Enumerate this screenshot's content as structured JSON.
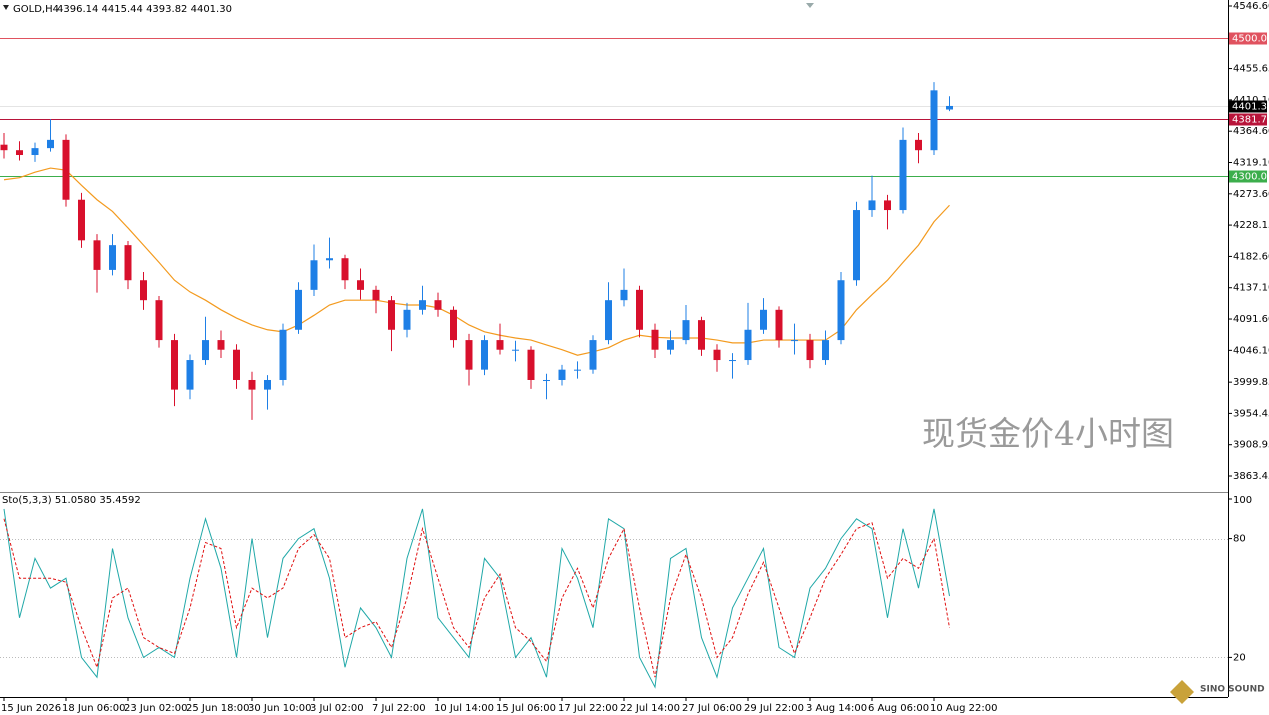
{
  "header": {
    "symbol": "GOLD,H4",
    "ohlc_text": "4396.14 4415.44 4393.82 4401.30"
  },
  "chart_data": [
    {
      "type": "candlestick",
      "categories": [
        "15 Jun 2026",
        null,
        null,
        null,
        "18 Jun 06:00",
        null,
        null,
        null,
        "23 Jun 02:00",
        null,
        null,
        null,
        "25 Jun 18:00",
        null,
        null,
        null,
        "30 Jun 10:00",
        null,
        null,
        null,
        "3 Jul 02:00",
        null,
        null,
        null,
        "7 Jul 22:00",
        null,
        null,
        null,
        "10 Jul 14:00",
        null,
        null,
        null,
        "15 Jul 06:00",
        null,
        null,
        null,
        "17 Jul 22:00",
        null,
        null,
        null,
        "22 Jul 14:00",
        null,
        null,
        null,
        "27 Jul 06:00",
        null,
        null,
        null,
        "29 Jul 22:00",
        null,
        null,
        null,
        "3 Aug 14:00",
        null,
        null,
        null,
        "6 Aug 06:00",
        null,
        null,
        null,
        "10 Aug 22:00",
        null
      ],
      "ohlc": [
        [
          4345,
          4362,
          4325,
          4337
        ],
        [
          4337,
          4350,
          4322,
          4330
        ],
        [
          4330,
          4348,
          4320,
          4340
        ],
        [
          4340,
          4382,
          4335,
          4352
        ],
        [
          4352,
          4360,
          4255,
          4265
        ],
        [
          4265,
          4275,
          4195,
          4206
        ],
        [
          4206,
          4215,
          4130,
          4163
        ],
        [
          4163,
          4215,
          4155,
          4199
        ],
        [
          4199,
          4205,
          4135,
          4148
        ],
        [
          4148,
          4160,
          4105,
          4119
        ],
        [
          4119,
          4125,
          4050,
          4061
        ],
        [
          4061,
          4070,
          3965,
          3989
        ],
        [
          3989,
          4040,
          3975,
          4032
        ],
        [
          4032,
          4095,
          4025,
          4061
        ],
        [
          4061,
          4075,
          4035,
          4047
        ],
        [
          4047,
          4055,
          3990,
          4003
        ],
        [
          4003,
          4015,
          3945,
          3989
        ],
        [
          3989,
          4010,
          3960,
          4003
        ],
        [
          4003,
          4085,
          3995,
          4076
        ],
        [
          4076,
          4145,
          4070,
          4134
        ],
        [
          4134,
          4200,
          4125,
          4177
        ],
        [
          4177,
          4210,
          4165,
          4180
        ],
        [
          4180,
          4185,
          4135,
          4148
        ],
        [
          4148,
          4165,
          4120,
          4134
        ],
        [
          4134,
          4140,
          4100,
          4119
        ],
        [
          4119,
          4125,
          4045,
          4076
        ],
        [
          4076,
          4115,
          4065,
          4105
        ],
        [
          4105,
          4140,
          4098,
          4119
        ],
        [
          4119,
          4130,
          4095,
          4105
        ],
        [
          4105,
          4110,
          4050,
          4061
        ],
        [
          4061,
          4070,
          3995,
          4018
        ],
        [
          4018,
          4068,
          4010,
          4061
        ],
        [
          4061,
          4085,
          4040,
          4047
        ],
        [
          4047,
          4060,
          4030,
          4047
        ],
        [
          4047,
          4052,
          3990,
          4003
        ],
        [
          4003,
          4012,
          3975,
          4003
        ],
        [
          4003,
          4025,
          3995,
          4018
        ],
        [
          4018,
          4030,
          4005,
          4018
        ],
        [
          4018,
          4068,
          4012,
          4061
        ],
        [
          4061,
          4145,
          4055,
          4119
        ],
        [
          4119,
          4165,
          4110,
          4134
        ],
        [
          4134,
          4140,
          4065,
          4076
        ],
        [
          4076,
          4085,
          4035,
          4047
        ],
        [
          4047,
          4075,
          4040,
          4061
        ],
        [
          4061,
          4112,
          4055,
          4090
        ],
        [
          4090,
          4095,
          4038,
          4047
        ],
        [
          4047,
          4055,
          4015,
          4032
        ],
        [
          4032,
          4042,
          4005,
          4032
        ],
        [
          4032,
          4115,
          4025,
          4076
        ],
        [
          4076,
          4122,
          4070,
          4105
        ],
        [
          4105,
          4110,
          4050,
          4061
        ],
        [
          4061,
          4085,
          4040,
          4061
        ],
        [
          4061,
          4070,
          4020,
          4032
        ],
        [
          4032,
          4075,
          4025,
          4061
        ],
        [
          4061,
          4160,
          4055,
          4148
        ],
        [
          4148,
          4262,
          4140,
          4250
        ],
        [
          4250,
          4300,
          4240,
          4264
        ],
        [
          4264,
          4272,
          4222,
          4250
        ],
        [
          4250,
          4370,
          4245,
          4352
        ],
        [
          4352,
          4362,
          4318,
          4337
        ],
        [
          4337,
          4436,
          4330,
          4424
        ],
        [
          4396.14,
          4415.44,
          4393.82,
          4401.3
        ]
      ],
      "up_color": "#1e7fe6",
      "down_color": "#d8102c",
      "ma": {
        "color": "#f39a1e",
        "values": [
          4294,
          4297,
          4305,
          4311,
          4308,
          4286,
          4265,
          4248,
          4224,
          4199,
          4174,
          4148,
          4131,
          4119,
          4105,
          4093,
          4083,
          4076,
          4073,
          4083,
          4097,
          4112,
          4119,
          4119,
          4119,
          4115,
          4112,
          4112,
          4108,
          4097,
          4083,
          4073,
          4068,
          4064,
          4061,
          4054,
          4047,
          4039,
          4044,
          4050,
          4061,
          4068,
          4065,
          4064,
          4064,
          4064,
          4061,
          4057,
          4057,
          4061,
          4061,
          4061,
          4061,
          4061,
          4076,
          4105,
          4127,
          4148,
          4174,
          4199,
          4233,
          4257
        ]
      },
      "ylim": [
        3840.2,
        4555.3
      ],
      "yticks": [
        {
          "value": 4546.6,
          "label": "4546.60"
        },
        {
          "value": 4455.65,
          "label": "4455.65"
        },
        {
          "value": 4410.1,
          "label": "4410.10"
        },
        {
          "value": 4364.6,
          "label": "4364.60"
        },
        {
          "value": 4319.1,
          "label": "4319.10"
        },
        {
          "value": 4273.6,
          "label": "4273.60"
        },
        {
          "value": 4228.15,
          "label": "4228.15"
        },
        {
          "value": 4182.6,
          "label": "4182.60"
        },
        {
          "value": 4137.1,
          "label": "4137.10"
        },
        {
          "value": 4091.6,
          "label": "4091.60"
        },
        {
          "value": 4046.1,
          "label": "4046.10"
        },
        {
          "value": 3999.85,
          "label": "3999.85"
        },
        {
          "value": 3954.45,
          "label": "3954.45"
        },
        {
          "value": 3908.95,
          "label": "3908.95"
        },
        {
          "value": 3863.45,
          "label": "3863.45"
        }
      ],
      "levels": [
        {
          "value": 4500,
          "label": "4500.00",
          "color": "#e0525f"
        },
        {
          "value": 4381.7,
          "label": "4381.70",
          "color": "#b8143a"
        },
        {
          "value": 4300,
          "label": "4300.00",
          "color": "#3cae4c"
        }
      ],
      "last_price": {
        "value": 4401.3,
        "label": "4401.30"
      },
      "watermark": "现货金价4小时图"
    },
    {
      "type": "stochastic",
      "title": "Sto(5,3,3) 51.0580 35.4592",
      "series": [
        {
          "color": "#20a8a8",
          "values": [
            95,
            40,
            70,
            55,
            60,
            20,
            10,
            75,
            40,
            20,
            25,
            20,
            60,
            90,
            65,
            20,
            80,
            30,
            70,
            80,
            85,
            60,
            15,
            45,
            35,
            20,
            70,
            95,
            40,
            30,
            20,
            70,
            60,
            20,
            30,
            10,
            75,
            60,
            35,
            90,
            85,
            20,
            5,
            70,
            75,
            30,
            10,
            45,
            60,
            75,
            25,
            20,
            55,
            65,
            80,
            90,
            85,
            40,
            85,
            55,
            95,
            51
          ]
        },
        {
          "color": "#e01010",
          "values": [
            90,
            60,
            60,
            60,
            58,
            35,
            15,
            50,
            55,
            30,
            25,
            22,
            45,
            78,
            75,
            35,
            55,
            50,
            55,
            75,
            82,
            70,
            30,
            35,
            38,
            25,
            50,
            85,
            60,
            35,
            25,
            50,
            62,
            35,
            28,
            18,
            50,
            65,
            45,
            70,
            85,
            45,
            10,
            50,
            72,
            50,
            20,
            30,
            52,
            68,
            45,
            22,
            40,
            60,
            72,
            85,
            88,
            60,
            70,
            65,
            80,
            35
          ]
        }
      ],
      "ylim": [
        0,
        100
      ],
      "yticks": [
        100,
        80,
        20
      ]
    }
  ],
  "logo": "SINO SOUND"
}
